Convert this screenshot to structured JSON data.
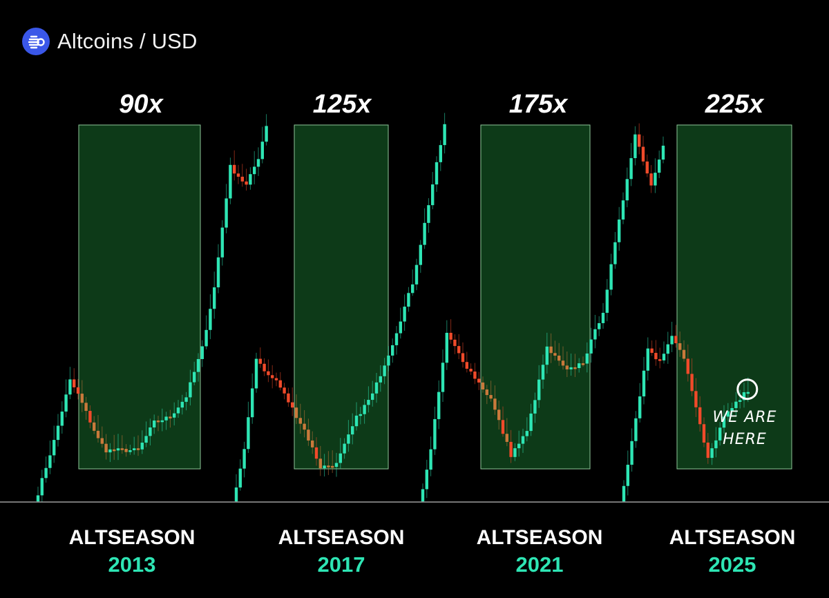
{
  "header": {
    "title": "Altcoins / USD",
    "logo_icon": "altcoin-logo-icon",
    "logo_color": "#3a57e8"
  },
  "colors": {
    "up": "#2ee5b4",
    "down": "#f04a2a",
    "neutral": "#c9793b",
    "zone_fill": "#0d3a18",
    "zone_border": "#8fc79a",
    "year": "#2ee5b4",
    "background": "#000000"
  },
  "chart_data": {
    "type": "candlestick",
    "title": "Altcoins / USD",
    "seasons": [
      {
        "multiplier": "90x",
        "label": "ALTSEASON",
        "year": "2013",
        "path": [
          {
            "n": 5,
            "to": 0.3
          },
          {
            "n": 4,
            "to": 0.95
          },
          {
            "n": 2,
            "to": 0.8
          },
          {
            "n": 5,
            "to": 0.32
          },
          {
            "n": 2,
            "to": 0.2
          },
          {
            "n": 8,
            "to": 0.2
          },
          {
            "n": 4,
            "to": 0.5
          },
          {
            "n": 4,
            "to": 0.56
          },
          {
            "n": 4,
            "to": 0.78
          },
          {
            "n": 4,
            "to": 1.3
          },
          {
            "n": 3,
            "to": 1.95
          },
          {
            "n": 4,
            "to": 3.25
          },
          {
            "n": 4,
            "to": 3.05
          },
          {
            "n": 3,
            "to": 3.35
          },
          {
            "n": 2,
            "to": 3.7
          }
        ]
      },
      {
        "multiplier": "125x",
        "label": "ALTSEASON",
        "year": "2017",
        "path": [
          {
            "n": 3,
            "to": 0.2
          },
          {
            "n": 3,
            "to": 1.2
          },
          {
            "n": 3,
            "to": 1.0
          },
          {
            "n": 2,
            "to": 0.95
          },
          {
            "n": 7,
            "to": 0.42
          },
          {
            "n": 4,
            "to": 0.02
          },
          {
            "n": 4,
            "to": 0.05
          },
          {
            "n": 5,
            "to": 0.55
          },
          {
            "n": 4,
            "to": 0.8
          },
          {
            "n": 5,
            "to": 1.35
          },
          {
            "n": 5,
            "to": 2.0
          },
          {
            "n": 4,
            "to": 2.85
          },
          {
            "n": 4,
            "to": 3.7
          }
        ]
      },
      {
        "multiplier": "175x",
        "label": "ALTSEASON",
        "year": "2021",
        "path": [
          {
            "n": 3,
            "to": 0.2
          },
          {
            "n": 4,
            "to": 1.45
          },
          {
            "n": 5,
            "to": 1.1
          },
          {
            "n": 6,
            "to": 0.75
          },
          {
            "n": 5,
            "to": 0.15
          },
          {
            "n": 4,
            "to": 0.4
          },
          {
            "n": 5,
            "to": 1.3
          },
          {
            "n": 5,
            "to": 1.05
          },
          {
            "n": 4,
            "to": 1.15
          },
          {
            "n": 5,
            "to": 1.7
          },
          {
            "n": 5,
            "to": 2.9
          },
          {
            "n": 3,
            "to": 3.6
          },
          {
            "n": 4,
            "to": 3.05
          },
          {
            "n": 3,
            "to": 3.5
          }
        ]
      },
      {
        "multiplier": "225x",
        "label": "ALTSEASON",
        "year": "2025",
        "annotation": [
          "WE ARE",
          "HERE"
        ],
        "path": [
          {
            "n": 3,
            "to": 0.3
          },
          {
            "n": 4,
            "to": 1.3
          },
          {
            "n": 3,
            "to": 1.15
          },
          {
            "n": 3,
            "to": 1.45
          },
          {
            "n": 3,
            "to": 1.2
          },
          {
            "n": 6,
            "to": 0.1
          },
          {
            "n": 4,
            "to": 0.55
          },
          {
            "n": 4,
            "to": 0.75
          },
          {
            "n": 2,
            "to": 0.85
          }
        ]
      }
    ]
  }
}
